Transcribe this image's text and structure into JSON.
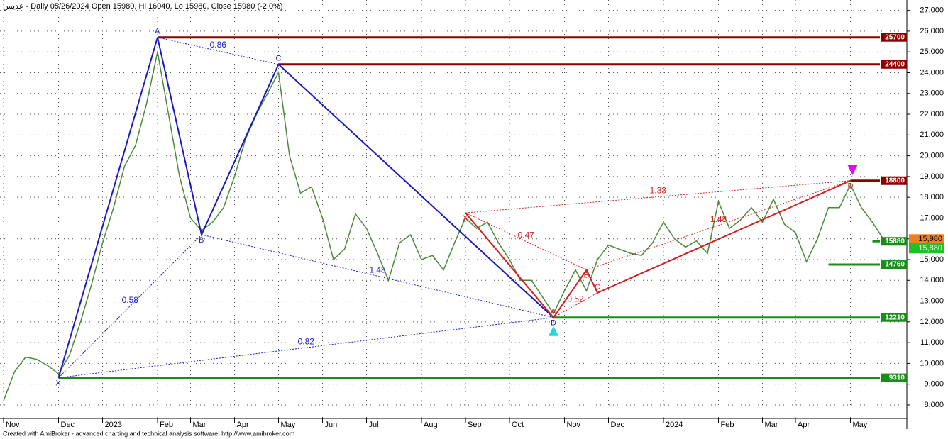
{
  "chart_data": {
    "type": "line",
    "title": "عديس - Daily 05/26/2024 Open 15980, Hi 16040, Lo 15980, Close 15980 (-2.0%)",
    "footer": "Created with AmiBroker - advanced charting and technical analysis software. http://www.amibroker.com",
    "categories": [
      "Nov",
      null,
      null,
      null,
      null,
      "Dec",
      null,
      null,
      null,
      "2023",
      null,
      null,
      null,
      null,
      "Feb",
      null,
      null,
      "Mar",
      null,
      null,
      null,
      "Apr",
      null,
      null,
      null,
      "May",
      null,
      null,
      null,
      "Jun",
      null,
      null,
      null,
      "Jul",
      null,
      null,
      null,
      null,
      "Aug",
      null,
      null,
      null,
      "Sep",
      null,
      null,
      null,
      "Oct",
      null,
      null,
      null,
      null,
      "Nov",
      null,
      null,
      null,
      "Dec",
      null,
      null,
      null,
      null,
      "2024",
      null,
      null,
      null,
      null,
      "Feb",
      null,
      null,
      null,
      "Mar",
      null,
      null,
      "Apr",
      null,
      null,
      null,
      null,
      "May",
      null,
      null,
      null
    ],
    "series": [
      {
        "color": "#4a8a3a",
        "values": [
          8200,
          9600,
          10300,
          10200,
          9900,
          9500,
          10400,
          12000,
          13800,
          15800,
          17500,
          19500,
          20500,
          22500,
          25000,
          22000,
          19000,
          17000,
          16400,
          16800,
          17500,
          19000,
          20800,
          22000,
          23000,
          24000,
          20000,
          18200,
          18500,
          17000,
          15000,
          15500,
          17200,
          16500,
          15300,
          14000,
          15800,
          16200,
          15000,
          15200,
          14500,
          15800,
          17000,
          16500,
          16800,
          15800,
          15000,
          14000,
          14000,
          13200,
          12400,
          13500,
          14500,
          13500,
          15000,
          15700,
          15500,
          15300,
          15200,
          15800,
          16800,
          16000,
          15600,
          15900,
          15300,
          17800,
          16500,
          16900,
          17500,
          16800,
          17900,
          16700,
          16300,
          14900,
          16000,
          17500,
          17500,
          18600,
          17500,
          16800,
          15980
        ]
      }
    ],
    "ylim": [
      7350,
      27500
    ],
    "yticks": [
      {
        "value": 8000,
        "label": "8,000"
      },
      {
        "value": 9000,
        "label": "9,000"
      },
      {
        "value": 10000,
        "label": "10,000"
      },
      {
        "value": 11000,
        "label": "11,000"
      },
      {
        "value": 12000,
        "label": "12,000"
      },
      {
        "value": 13000,
        "label": "13,000"
      },
      {
        "value": 14000,
        "label": "14,000"
      },
      {
        "value": 15000,
        "label": "15,000"
      },
      {
        "value": 16000,
        "label": "16,000"
      },
      {
        "value": 17000,
        "label": "17,000"
      },
      {
        "value": 18000,
        "label": "18,000"
      },
      {
        "value": 19000,
        "label": "19,000"
      },
      {
        "value": 20000,
        "label": "20,000"
      },
      {
        "value": 21000,
        "label": "21,000"
      },
      {
        "value": 22000,
        "label": "22,000"
      },
      {
        "value": 23000,
        "label": "23,000"
      },
      {
        "value": 24000,
        "label": "24,000"
      },
      {
        "value": 25000,
        "label": "25,000"
      },
      {
        "value": 26000,
        "label": "26,000"
      },
      {
        "value": 27000,
        "label": "27,000"
      }
    ],
    "grid": true,
    "levels": [
      {
        "value": 25700,
        "from": 14,
        "color": "#8b0000"
      },
      {
        "value": 24400,
        "from": 25,
        "color": "#8b0000"
      },
      {
        "value": 18800,
        "from": 77,
        "color": "#8b0000"
      },
      {
        "value": 15880,
        "from": 79,
        "color": "#1a8c1a"
      },
      {
        "value": 14760,
        "from": 75,
        "color": "#1a8c1a"
      },
      {
        "value": 12210,
        "from": 50,
        "color": "#1a8c1a"
      },
      {
        "value": 9310,
        "from": 5,
        "color": "#1a8c1a"
      }
    ],
    "price_tags": [
      {
        "value": 15980,
        "label": "15,980",
        "color": "#f07f1e"
      },
      {
        "value": 15880,
        "label": "15,880",
        "color": "#22c022"
      }
    ],
    "patterns": [
      {
        "color": "#1a1ac0",
        "points": [
          {
            "label": "X",
            "x": 5,
            "value": 9310
          },
          {
            "label": "A",
            "x": 14,
            "value": 25700
          },
          {
            "label": "B",
            "x": 18,
            "value": 16200
          },
          {
            "label": "C",
            "x": 25,
            "value": 24400
          },
          {
            "label": "D",
            "x": 50,
            "value": 12210
          }
        ],
        "ratios": [
          {
            "value": 0.86,
            "from": 1,
            "to": 3
          },
          {
            "value": 0.58,
            "from": 0,
            "to": 2
          },
          {
            "value": 1.48,
            "from": 2,
            "to": 4
          },
          {
            "value": 0.82,
            "from": 0,
            "to": 4
          }
        ]
      },
      {
        "color": "#d02020",
        "points": [
          {
            "label": "X",
            "x": 42,
            "value": 17250
          },
          {
            "label": "A",
            "x": 50,
            "value": 12210
          },
          {
            "label": "B",
            "x": 53,
            "value": 14500
          },
          {
            "label": "C",
            "x": 54,
            "value": 13400
          },
          {
            "label": "D",
            "x": 77,
            "value": 18800
          }
        ],
        "ratios": [
          {
            "value": 0.47,
            "from": 0,
            "to": 2
          },
          {
            "value": 0.52,
            "from": 1,
            "to": 3
          },
          {
            "value": 1.33,
            "from": 0,
            "to": 4
          },
          {
            "value": 1.48,
            "from": 2,
            "to": 4
          }
        ]
      }
    ]
  }
}
